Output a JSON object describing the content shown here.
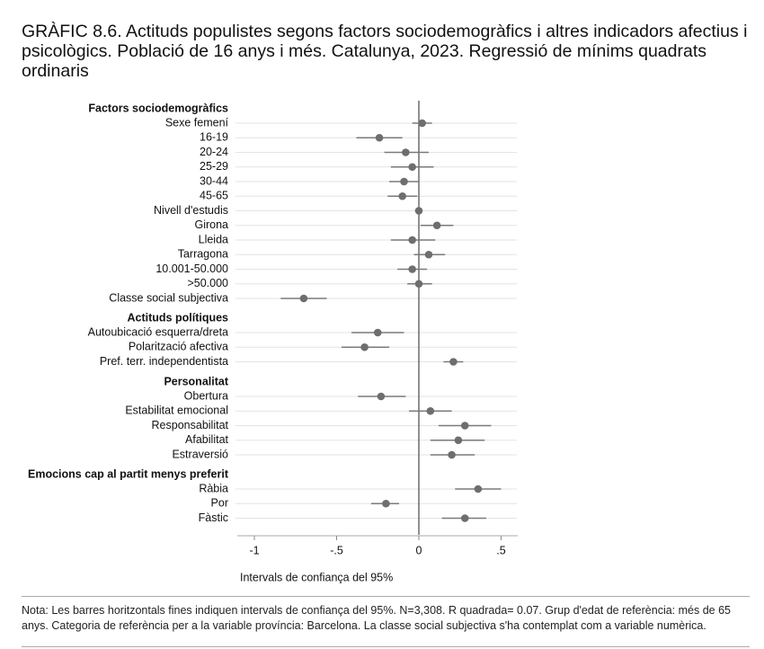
{
  "title": "GRÀFIC 8.6. Actituds populistes segons factors sociodemogràfics i altres indicadors afectius i psicològics. Població de 16 anys i més. Catalunya, 2023. Regressió de mínims quadrats ordinaris",
  "note": "Nota: Les barres horitzontals fines indiquen intervals de confiança del 95%. N=3,308. R quadrada= 0.07. Grup d'edat de referència: més de 65 anys. Categoria de referència per a la variable província: Barcelona. La classe social subjectiva s'ha contemplat com a variable numèrica.",
  "chart_data": {
    "type": "scatter",
    "subtype": "coefficient-plot",
    "xlabel": "Intervals de confiança del 95%",
    "xlim": [
      -1.1,
      0.58
    ],
    "xticks": [
      -1,
      -0.5,
      0,
      0.5
    ],
    "xtick_labels": [
      "-1",
      "-.5",
      "0",
      ".5"
    ],
    "reference_line": 0,
    "grid": true,
    "colors": {
      "point": "#6e6e6e",
      "ci": "#7a7a7a",
      "grid": "#e3e3e3",
      "zero": "#555555"
    },
    "groups": [
      {
        "name": "Factors sociodemogràfics",
        "items": [
          {
            "label": "Sexe femení",
            "estimate": 0.02,
            "ci": [
              -0.04,
              0.08
            ]
          },
          {
            "label": "16-19",
            "estimate": -0.24,
            "ci": [
              -0.38,
              -0.1
            ]
          },
          {
            "label": "20-24",
            "estimate": -0.08,
            "ci": [
              -0.21,
              0.06
            ]
          },
          {
            "label": "25-29",
            "estimate": -0.04,
            "ci": [
              -0.17,
              0.09
            ]
          },
          {
            "label": "30-44",
            "estimate": -0.09,
            "ci": [
              -0.18,
              0.0
            ]
          },
          {
            "label": "45-65",
            "estimate": -0.1,
            "ci": [
              -0.19,
              -0.01
            ]
          },
          {
            "label": "Nivell d'estudis",
            "estimate": 0.0,
            "ci": [
              -0.01,
              0.01
            ]
          },
          {
            "label": "Girona",
            "estimate": 0.11,
            "ci": [
              0.01,
              0.21
            ]
          },
          {
            "label": "Lleida",
            "estimate": -0.04,
            "ci": [
              -0.17,
              0.1
            ]
          },
          {
            "label": "Tarragona",
            "estimate": 0.06,
            "ci": [
              -0.03,
              0.16
            ]
          },
          {
            "label": "10.001-50.000",
            "estimate": -0.04,
            "ci": [
              -0.13,
              0.05
            ]
          },
          {
            "label": ">50.000",
            "estimate": 0.0,
            "ci": [
              -0.07,
              0.08
            ]
          },
          {
            "label": "Classe social subjectiva",
            "estimate": -0.7,
            "ci": [
              -0.84,
              -0.56
            ]
          }
        ]
      },
      {
        "name": "Actituds polítiques",
        "items": [
          {
            "label": "Autoubicació esquerra/dreta",
            "estimate": -0.25,
            "ci": [
              -0.41,
              -0.09
            ]
          },
          {
            "label": "Polarització afectiva",
            "estimate": -0.33,
            "ci": [
              -0.47,
              -0.18
            ]
          },
          {
            "label": "Pref. terr. independentista",
            "estimate": 0.21,
            "ci": [
              0.15,
              0.27
            ]
          }
        ]
      },
      {
        "name": "Personalitat",
        "items": [
          {
            "label": "Obertura",
            "estimate": -0.23,
            "ci": [
              -0.37,
              -0.08
            ]
          },
          {
            "label": "Estabilitat emocional",
            "estimate": 0.07,
            "ci": [
              -0.06,
              0.2
            ]
          },
          {
            "label": "Responsabilitat",
            "estimate": 0.28,
            "ci": [
              0.12,
              0.44
            ]
          },
          {
            "label": "Afabilitat",
            "estimate": 0.24,
            "ci": [
              0.07,
              0.4
            ]
          },
          {
            "label": "Estraversió",
            "estimate": 0.2,
            "ci": [
              0.07,
              0.34
            ]
          }
        ]
      },
      {
        "name": "Emocions cap al partit menys preferit",
        "items": [
          {
            "label": "Ràbia",
            "estimate": 0.36,
            "ci": [
              0.22,
              0.5
            ]
          },
          {
            "label": "Por",
            "estimate": -0.2,
            "ci": [
              -0.29,
              -0.12
            ]
          },
          {
            "label": "Fàstic",
            "estimate": 0.28,
            "ci": [
              0.14,
              0.41
            ]
          }
        ]
      }
    ]
  }
}
